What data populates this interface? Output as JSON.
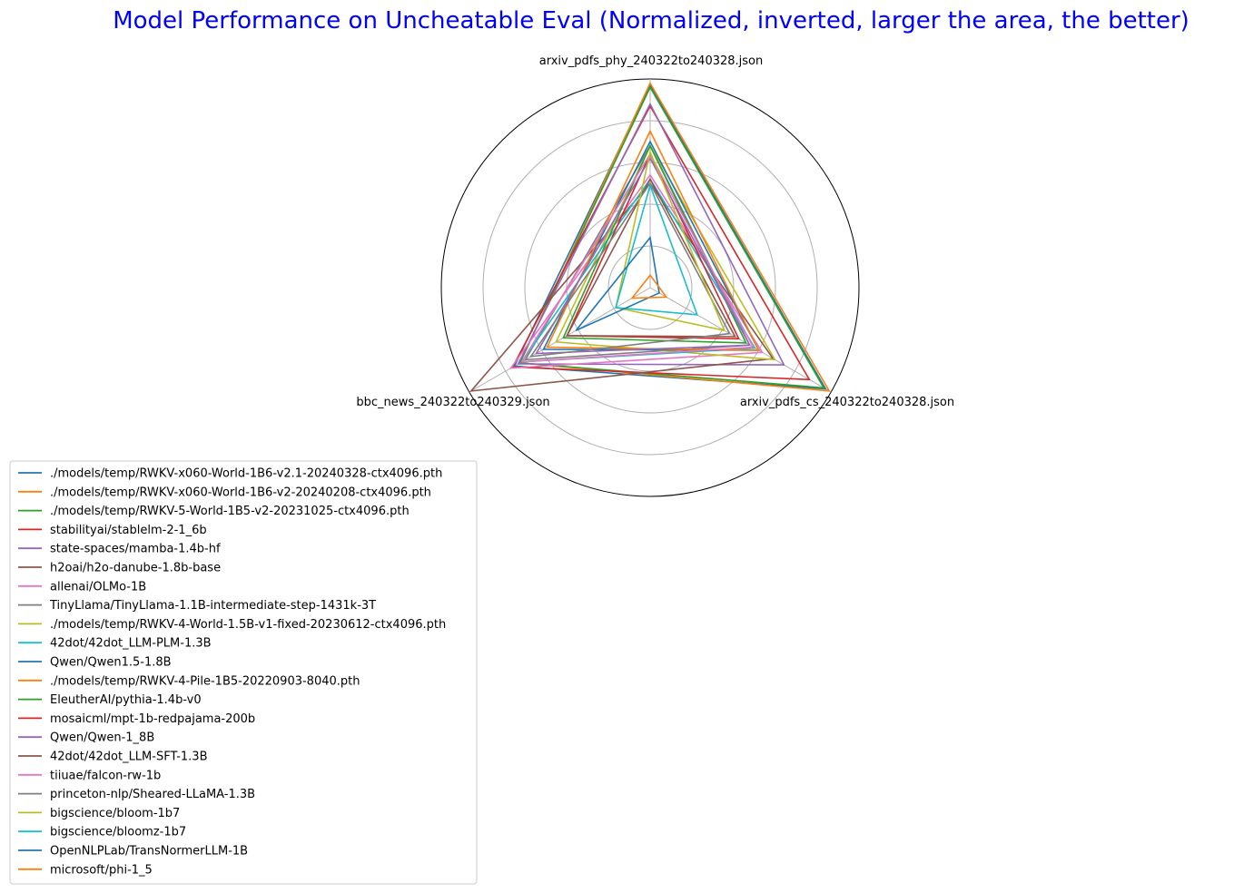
{
  "chart_data": {
    "type": "radar",
    "title": "Model Performance on Uncheatable Eval (Normalized, inverted, larger the area, the better)",
    "title_color": "#0000ff",
    "axes": [
      "arxiv_pdfs_phy_240322to240328.json",
      "arxiv_pdfs_cs_240322to240328.json",
      "bbc_news_240322to240329.json"
    ],
    "r_range": [
      0,
      1
    ],
    "grid": true,
    "legend_position": "bottom-left",
    "series": [
      {
        "name": "./models/temp/RWKV-x060-World-1B6-v2.1-20240328-ctx4096.pth",
        "color": "#1f77b4",
        "values": [
          0.97,
          0.97,
          0.75
        ]
      },
      {
        "name": "./models/temp/RWKV-x060-World-1B6-v2-20240208-ctx4096.pth",
        "color": "#ff7f0e",
        "values": [
          0.98,
          0.99,
          0.72
        ]
      },
      {
        "name": "./models/temp/RWKV-5-World-1B5-v2-20231025-ctx4096.pth",
        "color": "#2ca02c",
        "values": [
          0.96,
          0.96,
          0.72
        ]
      },
      {
        "name": "stabilityai/stablelm-2-1_6b",
        "color": "#d62728",
        "values": [
          0.87,
          0.88,
          0.76
        ]
      },
      {
        "name": "state-spaces/mamba-1.4b-hf",
        "color": "#9467bd",
        "values": [
          0.88,
          0.74,
          0.73
        ]
      },
      {
        "name": "h2oai/h2o-danube-1.8b-base",
        "color": "#8c564b",
        "values": [
          0.5,
          0.68,
          0.99
        ]
      },
      {
        "name": "allenai/OLMo-1B",
        "color": "#e377c2",
        "values": [
          0.54,
          0.62,
          0.77
        ]
      },
      {
        "name": "TinyLlama/TinyLlama-1.1B-intermediate-step-1431k-3T",
        "color": "#7f7f7f",
        "values": [
          0.68,
          0.55,
          0.69
        ]
      },
      {
        "name": "./models/temp/RWKV-4-World-1.5B-v1-fixed-20230612-ctx4096.pth",
        "color": "#bcbd22",
        "values": [
          0.68,
          0.69,
          0.52
        ]
      },
      {
        "name": "42dot/42dot_LLM-PLM-1.3B",
        "color": "#17becf",
        "values": [
          0.52,
          0.58,
          0.71
        ]
      },
      {
        "name": "Qwen/Qwen1.5-1.8B",
        "color": "#1f77b4",
        "values": [
          0.7,
          0.6,
          0.59
        ]
      },
      {
        "name": "./models/temp/RWKV-4-Pile-1B5-20220903-8040.pth",
        "color": "#ff7f0e",
        "values": [
          0.75,
          0.6,
          0.57
        ]
      },
      {
        "name": "EleutherAI/pythia-1.4b-v0",
        "color": "#2ca02c",
        "values": [
          0.68,
          0.53,
          0.48
        ]
      },
      {
        "name": "mosaicml/mpt-1b-redpajama-200b",
        "color": "#d62728",
        "values": [
          0.64,
          0.49,
          0.46
        ]
      },
      {
        "name": "Qwen/Qwen-1_8B",
        "color": "#9467bd",
        "values": [
          0.62,
          0.55,
          0.63
        ]
      },
      {
        "name": "42dot/42dot_LLM-SFT-1.3B",
        "color": "#8c564b",
        "values": [
          0.52,
          0.47,
          0.46
        ]
      },
      {
        "name": "tiiuae/falcon-rw-1b",
        "color": "#e377c2",
        "values": [
          0.64,
          0.57,
          0.71
        ]
      },
      {
        "name": "princeton-nlp/Sheared-LLaMA-1.3B",
        "color": "#7f7f7f",
        "values": [
          0.5,
          0.44,
          0.66
        ]
      },
      {
        "name": "bigscience/bloom-1b7",
        "color": "#bcbd22",
        "values": [
          0.65,
          0.41,
          0.19
        ]
      },
      {
        "name": "bigscience/bloomz-1b7",
        "color": "#17becf",
        "values": [
          0.49,
          0.26,
          0.19
        ]
      },
      {
        "name": "OpenNLPLab/TransNormerLLM-1B",
        "color": "#1f77b4",
        "values": [
          0.24,
          0.05,
          0.41
        ]
      },
      {
        "name": "microsoft/phi-1_5",
        "color": "#ff7f0e",
        "values": [
          0.06,
          0.09,
          0.1
        ]
      }
    ]
  }
}
